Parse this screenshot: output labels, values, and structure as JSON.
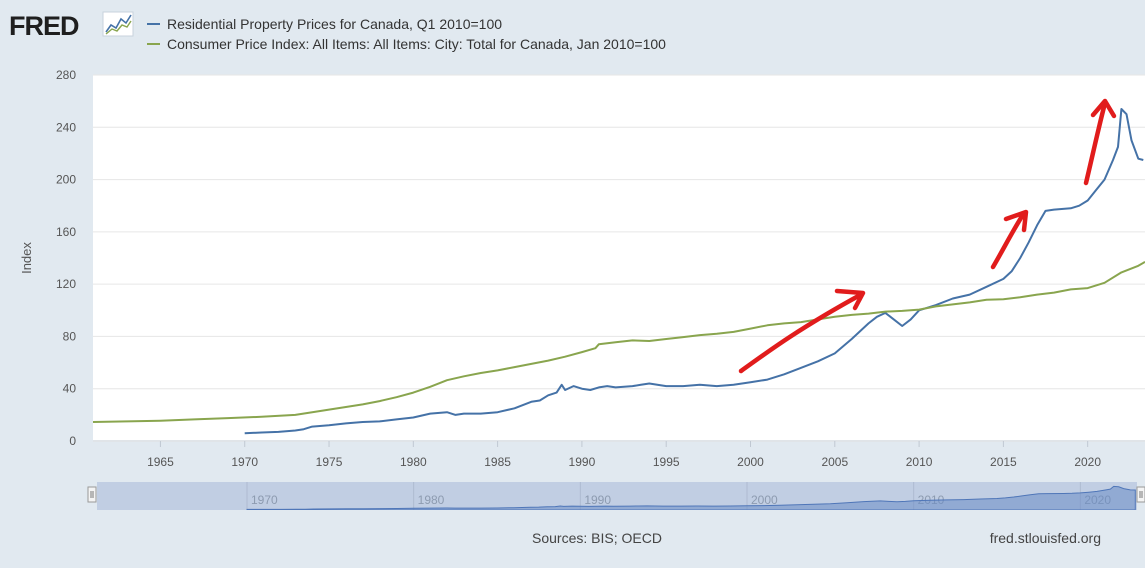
{
  "header": {
    "logo_text": "FRED",
    "logo_icon": "line-graph-icon"
  },
  "chart_data": {
    "type": "line",
    "title": "",
    "xlabel": "",
    "ylabel": "Index",
    "xlim": [
      1961,
      2023.4
    ],
    "ylim": [
      0,
      280
    ],
    "yticks": [
      0,
      40,
      80,
      120,
      160,
      200,
      240,
      280
    ],
    "ytick_labels": [
      "0",
      "40",
      "80",
      "120",
      "160",
      "200",
      "240",
      "280"
    ],
    "xticks": [
      1965,
      1970,
      1975,
      1980,
      1985,
      1990,
      1995,
      2000,
      2005,
      2010,
      2015,
      2020
    ],
    "xtick_labels": [
      "1965",
      "1970",
      "1975",
      "1980",
      "1985",
      "1990",
      "1995",
      "2000",
      "2005",
      "2010",
      "2015",
      "2020"
    ],
    "grid": true,
    "legend_position": "top-left",
    "series": [
      {
        "name": "Residential Property Prices for Canada, Q1 2010=100",
        "color": "#4572a7",
        "x": [
          1970,
          1971,
          1972,
          1973,
          1973.5,
          1974,
          1975,
          1976,
          1977,
          1978,
          1979,
          1980,
          1981,
          1982,
          1982.5,
          1983,
          1984,
          1985,
          1986,
          1987,
          1987.5,
          1988,
          1988.5,
          1988.8,
          1989,
          1989.5,
          1990,
          1990.5,
          1991,
          1991.5,
          1992,
          1993,
          1993.5,
          1994,
          1995,
          1996,
          1997,
          1998,
          1999,
          2000,
          2001,
          2002,
          2003,
          2004,
          2005,
          2006,
          2007,
          2007.5,
          2008,
          2008.5,
          2009,
          2009.5,
          2010,
          2011,
          2012,
          2013,
          2014,
          2015,
          2015.5,
          2016,
          2016.5,
          2017,
          2017.5,
          2018,
          2019,
          2019.5,
          2020,
          2020.5,
          2021,
          2021.5,
          2021.8,
          2022,
          2022.3,
          2022.6,
          2023,
          2023.3
        ],
        "values": [
          6,
          6.5,
          7,
          8,
          9,
          11,
          12,
          13.5,
          14.5,
          15,
          16.5,
          18,
          21,
          22,
          20,
          21,
          21,
          22,
          25,
          30,
          31,
          35,
          37,
          43,
          39,
          42,
          40,
          39,
          41,
          42,
          41,
          42,
          43,
          44,
          42,
          42,
          43,
          42,
          43,
          45,
          47,
          51,
          56,
          61,
          67,
          78,
          90,
          95,
          98,
          93,
          88,
          93,
          100,
          104,
          109,
          112,
          118,
          124,
          130,
          140,
          152,
          165,
          176,
          177,
          178,
          180,
          184,
          192,
          200,
          215,
          225,
          254,
          250,
          230,
          216,
          215
        ]
      },
      {
        "name": "Consumer Price Index: All Items: All Items: City: Total for Canada, Jan 2010=100",
        "color": "#89a54e",
        "x": [
          1961,
          1963,
          1965,
          1967,
          1969,
          1971,
          1973,
          1974,
          1975,
          1976,
          1977,
          1978,
          1979,
          1980,
          1981,
          1982,
          1983,
          1984,
          1985,
          1986,
          1987,
          1988,
          1989,
          1990,
          1990.8,
          1991,
          1992,
          1993,
          1994,
          1995,
          1996,
          1997,
          1998,
          1999,
          2000,
          2001,
          2002,
          2003,
          2004,
          2005,
          2006,
          2007,
          2008,
          2009,
          2010,
          2011,
          2012,
          2013,
          2014,
          2015,
          2016,
          2017,
          2018,
          2019,
          2020,
          2021,
          2022,
          2023,
          2023.4
        ],
        "values": [
          14.5,
          15,
          15.5,
          16.5,
          17.5,
          18.5,
          20,
          22,
          24,
          26,
          28,
          30.5,
          33.5,
          37,
          41.5,
          46.5,
          49.5,
          52,
          54,
          56.5,
          59,
          61.5,
          64.5,
          68,
          71,
          74,
          75.5,
          77,
          76.5,
          78,
          79.5,
          81,
          82,
          83.5,
          86,
          88.5,
          90,
          91,
          93,
          95,
          96.5,
          97.5,
          99,
          99.5,
          100.5,
          103,
          104.5,
          106,
          108,
          108.5,
          110,
          112,
          113.5,
          116,
          117,
          121,
          129,
          134,
          137
        ]
      }
    ],
    "navigator": {
      "tick_labels": [
        "1970",
        "1980",
        "1990",
        "2000",
        "2010",
        "2020"
      ]
    }
  },
  "annotations": {
    "arrows_color": "#e11c1c",
    "arrows_description_count": 3
  },
  "footer": {
    "sources": "Sources: BIS; OECD",
    "site": "fred.stlouisfed.org"
  }
}
